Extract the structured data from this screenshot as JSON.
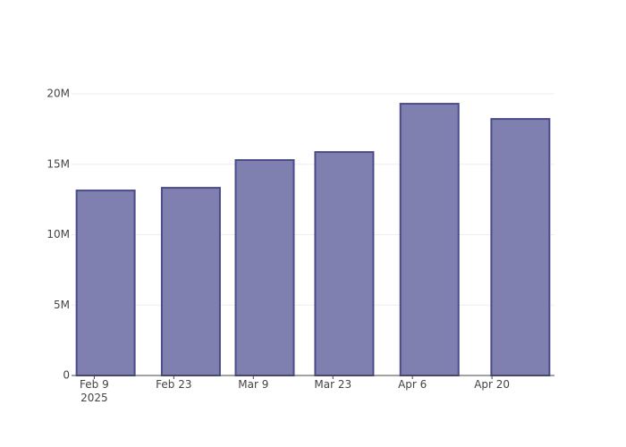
{
  "chart_data": {
    "type": "bar",
    "x": [
      "2025-02-11",
      "2025-02-26",
      "2025-03-11",
      "2025-03-25",
      "2025-04-09",
      "2025-04-25"
    ],
    "values": [
      13140000,
      13330000,
      15300000,
      15870000,
      19300000,
      18220000
    ],
    "color": "#7f7fb0",
    "edgecolor": "#4b4b8c",
    "xlim": [
      "2025-02-05",
      "2025-05-01"
    ],
    "xticks": [
      {
        "value": "2025-02-09",
        "label": "Feb 9\n2025"
      },
      {
        "value": "2025-02-23",
        "label": "Feb 23"
      },
      {
        "value": "2025-03-09",
        "label": "Mar 9"
      },
      {
        "value": "2025-03-23",
        "label": "Mar 23"
      },
      {
        "value": "2025-04-06",
        "label": "Apr 6"
      },
      {
        "value": "2025-04-20",
        "label": "Apr 20"
      }
    ],
    "ylim": [
      0,
      20320000
    ],
    "yticks": [
      0,
      {
        "value": 5000000,
        "label": "5M"
      },
      {
        "value": 10000000,
        "label": "10M"
      },
      {
        "value": 15000000,
        "label": "15M"
      },
      {
        "value": 20000000,
        "label": "20M"
      }
    ],
    "grid": true
  }
}
